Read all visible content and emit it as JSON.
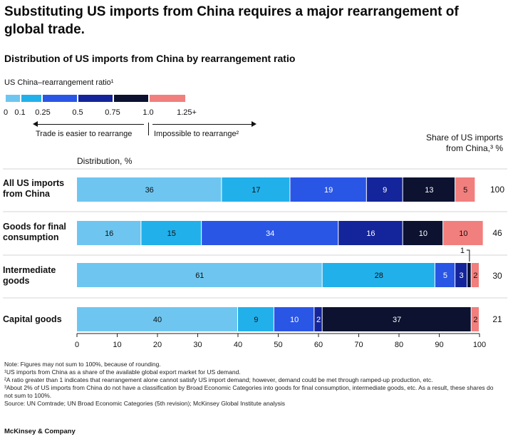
{
  "title": "Substituting US imports from China requires a major rearrangement of global trade.",
  "legend": {
    "title": "US China–rearrangement ratio¹",
    "ticks": [
      "0",
      "0.1",
      "0.25",
      "0.5",
      "0.75",
      "1.0",
      "1.25+"
    ],
    "colors": [
      "#6ec6f0",
      "#22b0ea",
      "#2a56e6",
      "#14249a",
      "#0c1230",
      "#f17f7d"
    ],
    "left_note": "Trade is easier to rearrange",
    "right_note": "Impossible to rearrange²"
  },
  "share_header": "Share of US imports from China,³ %",
  "footnotes": [
    "Note: Figures may not sum to 100%, because of rounding.",
    "¹US imports from China as a share of the available global export market for US demand.",
    "²A ratio greater than 1 indicates that rearrangement alone cannot satisfy US import demand; however, demand could be met through ramped-up production, etc.",
    "³About 2% of US imports from China do not have a classification by Broad Economic Categories into goods for final consumption, intermediate goods, etc. As a result, these shares do not sum to 100%.",
    "Source: UN Comtrade; UN Broad Economic Categories (5th revision); McKinsey Global Institute analysis"
  ],
  "brand": "McKinsey & Company",
  "chart_data": {
    "type": "bar",
    "orientation": "horizontal",
    "stacked": true,
    "title": "Distribution of US imports from China by rearrangement ratio",
    "xlabel": "Distribution, %",
    "xlim": [
      0,
      100
    ],
    "xticks": [
      "0",
      "10",
      "20",
      "30",
      "40",
      "50",
      "60",
      "70",
      "80",
      "90",
      "100"
    ],
    "categories": [
      "All US imports from China",
      "Goods for final consumption",
      "Intermediate goods",
      "Capital goods"
    ],
    "series": [
      {
        "name": "0–0.1",
        "color": "#6ec6f0",
        "values": [
          36,
          16,
          61,
          40
        ]
      },
      {
        "name": "0.1–0.25",
        "color": "#22b0ea",
        "values": [
          17,
          15,
          28,
          9
        ]
      },
      {
        "name": "0.25–0.5",
        "color": "#2a56e6",
        "values": [
          19,
          34,
          5,
          10
        ]
      },
      {
        "name": "0.5–0.75",
        "color": "#14249a",
        "values": [
          9,
          16,
          3,
          2
        ]
      },
      {
        "name": "0.75–1.0",
        "color": "#0c1230",
        "values": [
          13,
          10,
          1,
          37
        ]
      },
      {
        "name": "1.25+",
        "color": "#f17f7d",
        "values": [
          5,
          10,
          2,
          2
        ]
      }
    ],
    "share_of_us_imports": [
      100,
      46,
      30,
      21
    ]
  }
}
